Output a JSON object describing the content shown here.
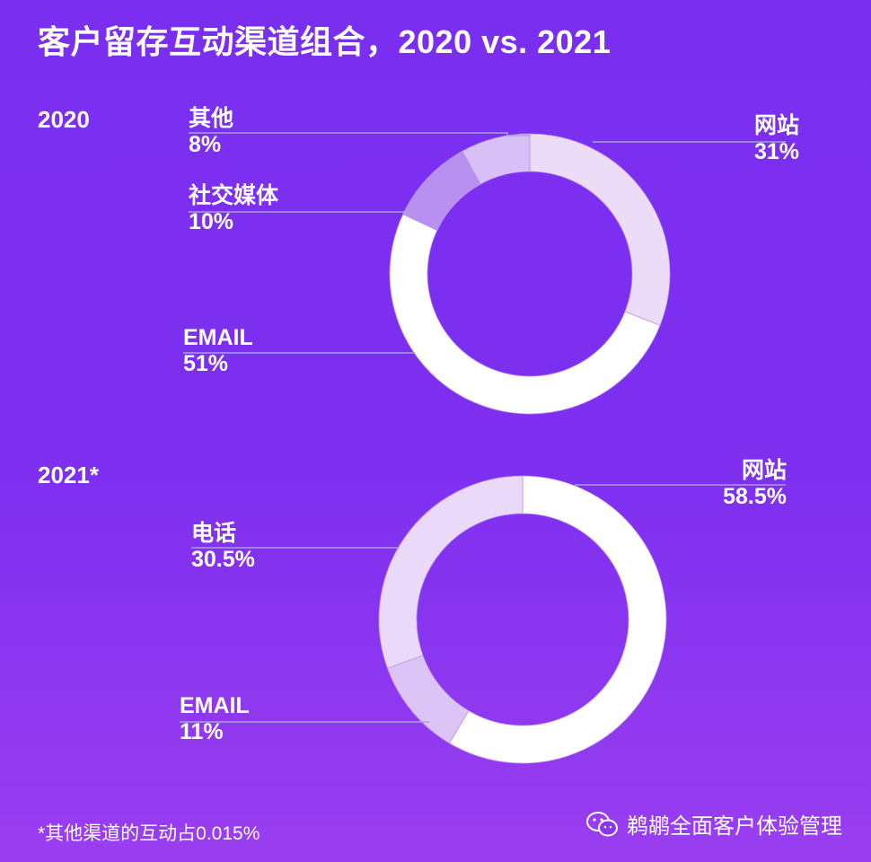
{
  "title": "客户留存互动渠道组合，2020 vs. 2021",
  "footnote": "*其他渠道的互动占0.015%",
  "brand": {
    "name": "鹈鹕全面客户体验管理",
    "icon": "wechat-icon"
  },
  "chart_data": [
    {
      "type": "pie",
      "donut": true,
      "year_label": "2020",
      "slices": [
        {
          "label": "网站",
          "value": 31,
          "display": "31%",
          "color": "#ecdcf8"
        },
        {
          "label": "EMAIL",
          "value": 51,
          "display": "51%",
          "color": "#ffffff"
        },
        {
          "label": "社交媒体",
          "value": 10,
          "display": "10%",
          "color": "#b891f0"
        },
        {
          "label": "其他",
          "value": 8,
          "display": "8%",
          "color": "#d8c0f6"
        }
      ]
    },
    {
      "type": "pie",
      "donut": true,
      "year_label": "2021*",
      "slices": [
        {
          "label": "网站",
          "value": 58.5,
          "display": "58.5%",
          "color": "#ffffff"
        },
        {
          "label": "EMAIL",
          "value": 11,
          "display": "11%",
          "color": "#ddc4f7"
        },
        {
          "label": "电话",
          "value": 30.5,
          "display": "30.5%",
          "color": "#ead9f8"
        }
      ]
    }
  ]
}
